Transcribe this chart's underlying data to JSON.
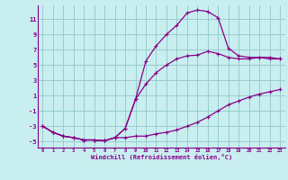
{
  "xlabel": "Windchill (Refroidissement éolien,°C)",
  "bg_color": "#c8eef0",
  "line_color": "#880088",
  "grid_color": "#99cccc",
  "xlim": [
    -0.5,
    23.5
  ],
  "ylim": [
    -5.8,
    12.8
  ],
  "yticks": [
    -5,
    -3,
    -1,
    1,
    3,
    5,
    7,
    9,
    11
  ],
  "xticks": [
    0,
    1,
    2,
    3,
    4,
    5,
    6,
    7,
    8,
    9,
    10,
    11,
    12,
    13,
    14,
    15,
    16,
    17,
    18,
    19,
    20,
    21,
    22,
    23
  ],
  "line1_x": [
    0,
    1,
    2,
    3,
    4,
    5,
    6,
    7,
    8,
    9,
    10,
    11,
    12,
    13,
    14,
    15,
    16,
    17,
    18,
    19,
    20,
    21,
    22,
    23
  ],
  "line1_y": [
    -3.0,
    -3.8,
    -4.3,
    -4.5,
    -4.8,
    -4.8,
    -4.9,
    -4.5,
    -4.5,
    -4.3,
    -4.3,
    -4.0,
    -3.8,
    -3.5,
    -3.0,
    -2.5,
    -1.8,
    -1.0,
    -0.2,
    0.3,
    0.8,
    1.2,
    1.5,
    1.8
  ],
  "line2_x": [
    0,
    1,
    2,
    3,
    4,
    5,
    6,
    7,
    8,
    9,
    10,
    11,
    12,
    13,
    14,
    15,
    16,
    17,
    18,
    19,
    20,
    21,
    22,
    23
  ],
  "line2_y": [
    -3.0,
    -3.8,
    -4.3,
    -4.5,
    -4.8,
    -4.8,
    -4.9,
    -4.5,
    -3.3,
    0.5,
    2.5,
    4.0,
    5.0,
    5.8,
    6.2,
    6.3,
    6.8,
    6.5,
    6.0,
    5.8,
    5.8,
    6.0,
    6.0,
    5.8
  ],
  "line3_x": [
    0,
    1,
    2,
    3,
    4,
    5,
    6,
    7,
    8,
    9,
    10,
    11,
    12,
    13,
    14,
    15,
    16,
    17,
    18,
    19,
    20,
    21,
    22,
    23
  ],
  "line3_y": [
    -3.0,
    -3.8,
    -4.3,
    -4.5,
    -4.8,
    -4.8,
    -4.9,
    -4.5,
    -3.3,
    0.5,
    5.5,
    7.5,
    9.0,
    10.2,
    11.8,
    12.2,
    12.0,
    11.2,
    7.2,
    6.2,
    6.0,
    6.0,
    5.8,
    5.8
  ]
}
